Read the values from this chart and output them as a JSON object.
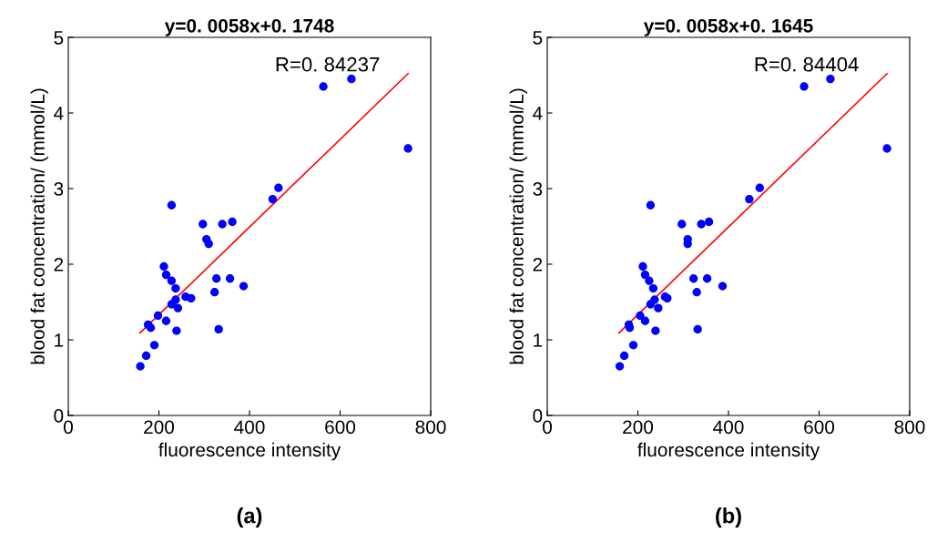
{
  "chart_data": [
    {
      "type": "scatter",
      "title": "y=0. 0058x+0. 1748",
      "xlabel": "fluorescence intensity",
      "ylabel": "blood fat concentration/ (mmol/L)",
      "annotations": [
        "R=0. 84237",
        "(a)"
      ],
      "xlim": [
        0,
        800
      ],
      "xticks": [
        0,
        200,
        400,
        600,
        800
      ],
      "ylim": [
        0,
        5
      ],
      "yticks": [
        0,
        1,
        2,
        3,
        4,
        5
      ],
      "grid": false,
      "series": [
        {
          "marker": "circle",
          "color": "#0000ff",
          "x": [
            464,
            451,
            228,
            297,
            340,
            362,
            305,
            310,
            211,
            216,
            228,
            237,
            327,
            357,
            387,
            323,
            259,
            271,
            237,
            228,
            242,
            198,
            176,
            182,
            216,
            239,
            332,
            190,
            172,
            159,
            563,
            625,
            750
          ],
          "values": [
            3.01,
            2.86,
            2.78,
            2.53,
            2.53,
            2.56,
            2.33,
            2.27,
            1.97,
            1.86,
            1.78,
            1.68,
            1.81,
            1.81,
            1.71,
            1.63,
            1.57,
            1.55,
            1.53,
            1.47,
            1.42,
            1.32,
            1.2,
            1.16,
            1.25,
            1.12,
            1.14,
            0.93,
            0.79,
            0.65,
            4.35,
            4.45,
            3.53
          ]
        },
        {
          "type": "line",
          "color": "#ff0000",
          "x": [
            158,
            750
          ],
          "values": [
            1.09,
            4.52
          ]
        }
      ]
    },
    {
      "type": "scatter",
      "title": "y=0. 0058x+0. 1645",
      "xlabel": "fluorescence intensity",
      "ylabel": "blood fat concentration/ (mmol/L)",
      "annotations": [
        "R=0. 84404",
        "(b)"
      ],
      "xlim": [
        0,
        800
      ],
      "xticks": [
        0,
        200,
        400,
        600,
        800
      ],
      "ylim": [
        0,
        5
      ],
      "yticks": [
        0,
        1,
        2,
        3,
        4,
        5
      ],
      "grid": false,
      "series": [
        {
          "marker": "circle",
          "color": "#0000ff",
          "x": [
            469,
            446,
            228,
            297,
            340,
            357,
            310,
            310,
            211,
            216,
            225,
            234,
            323,
            353,
            387,
            330,
            260,
            265,
            237,
            228,
            245,
            205,
            180,
            182,
            216,
            239,
            332,
            190,
            170,
            160,
            567,
            625,
            750
          ],
          "values": [
            3.01,
            2.86,
            2.78,
            2.53,
            2.53,
            2.56,
            2.33,
            2.27,
            1.97,
            1.86,
            1.78,
            1.68,
            1.81,
            1.81,
            1.71,
            1.63,
            1.57,
            1.55,
            1.53,
            1.47,
            1.42,
            1.32,
            1.2,
            1.16,
            1.25,
            1.12,
            1.14,
            0.93,
            0.79,
            0.65,
            4.35,
            4.45,
            3.53
          ]
        },
        {
          "type": "line",
          "color": "#ff0000",
          "x": [
            158,
            750
          ],
          "values": [
            1.09,
            4.52
          ]
        }
      ]
    }
  ]
}
